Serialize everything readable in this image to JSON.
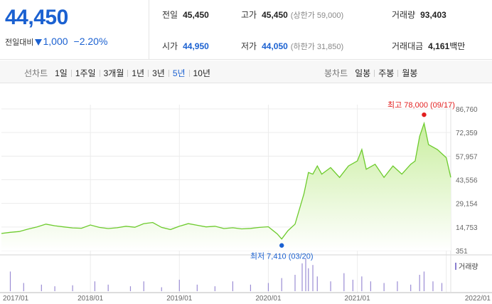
{
  "quote": {
    "price": "44,450",
    "change_label": "전일대비",
    "change_amount": "1,000",
    "change_pct": "−2.20%",
    "prev_close_label": "전일",
    "prev_close": "45,450",
    "high_label": "고가",
    "high": "45,450",
    "upper_limit": "(상한가 59,000)",
    "volume_label": "거래량",
    "volume": "93,403",
    "open_label": "시가",
    "open": "44,950",
    "low_label": "저가",
    "low": "44,050",
    "lower_limit": "(하한가 31,850)",
    "trade_value_label": "거래대금",
    "trade_value": "4,161",
    "trade_value_unit": "백만"
  },
  "toolbar": {
    "line_chart_label": "선차트",
    "periods": [
      "1일",
      "1주일",
      "3개월",
      "1년",
      "3년",
      "5년",
      "10년"
    ],
    "selected_period": "5년",
    "candle_chart_label": "봉차트",
    "candles": [
      "일봉",
      "주봉",
      "월봉"
    ]
  },
  "chart_data": {
    "type": "area",
    "x_labels": [
      "2017/01",
      "2018/01",
      "2019/01",
      "2020/01",
      "2021/01",
      "2022/01"
    ],
    "y_ticks": [
      "86,760",
      "72,359",
      "57,957",
      "43,556",
      "29,154",
      "14,753",
      "351"
    ],
    "ylim": [
      351,
      86760
    ],
    "price_series": {
      "x": [
        2017.0,
        2017.1,
        2017.2,
        2017.3,
        2017.4,
        2017.5,
        2017.6,
        2017.7,
        2017.8,
        2017.9,
        2018.0,
        2018.1,
        2018.2,
        2018.3,
        2018.4,
        2018.5,
        2018.6,
        2018.7,
        2018.8,
        2018.9,
        2019.0,
        2019.1,
        2019.2,
        2019.3,
        2019.4,
        2019.5,
        2019.6,
        2019.7,
        2019.8,
        2019.9,
        2020.0,
        2020.1,
        2020.15,
        2020.22,
        2020.3,
        2020.4,
        2020.45,
        2020.5,
        2020.55,
        2020.6,
        2020.7,
        2020.8,
        2020.9,
        2021.0,
        2021.05,
        2021.1,
        2021.2,
        2021.3,
        2021.4,
        2021.5,
        2021.6,
        2021.65,
        2021.7,
        2021.75,
        2021.8,
        2021.9,
        2022.0,
        2022.05
      ],
      "y": [
        10800,
        11500,
        12000,
        13500,
        14800,
        16500,
        15500,
        14800,
        14200,
        14000,
        16000,
        14500,
        13800,
        14300,
        15200,
        14600,
        16800,
        17500,
        14500,
        13200,
        15200,
        16800,
        15800,
        14800,
        15200,
        13800,
        14300,
        13600,
        13900,
        14500,
        14900,
        10500,
        7410,
        12500,
        16500,
        35000,
        48000,
        47000,
        52000,
        47000,
        51000,
        45000,
        52000,
        55000,
        62000,
        50000,
        53000,
        45000,
        52000,
        47000,
        53000,
        55000,
        70000,
        78000,
        65000,
        62000,
        57000,
        45000
      ]
    },
    "max_annotation": "최고 78,000 (09/17)",
    "min_annotation": "최저 7,410 (03/20)",
    "volume_legend": "거래량",
    "volume_series": {
      "x": [
        2017.1,
        2017.25,
        2017.45,
        2017.6,
        2017.8,
        2018.05,
        2018.2,
        2018.45,
        2018.6,
        2018.8,
        2019.0,
        2019.2,
        2019.4,
        2019.6,
        2019.8,
        2020.0,
        2020.15,
        2020.3,
        2020.38,
        2020.42,
        2020.45,
        2020.5,
        2020.55,
        2020.7,
        2020.85,
        2020.95,
        2021.05,
        2021.15,
        2021.3,
        2021.45,
        2021.6,
        2021.7,
        2021.75,
        2021.85,
        2021.95
      ],
      "y": [
        0.6,
        0.25,
        0.2,
        0.15,
        0.18,
        0.3,
        0.2,
        0.15,
        0.3,
        0.12,
        0.35,
        0.2,
        0.15,
        0.3,
        0.2,
        0.25,
        0.4,
        0.5,
        0.85,
        1.0,
        0.7,
        0.8,
        0.45,
        0.3,
        0.55,
        0.35,
        0.45,
        0.3,
        0.25,
        0.3,
        0.2,
        0.5,
        0.6,
        0.3,
        0.25
      ]
    }
  }
}
